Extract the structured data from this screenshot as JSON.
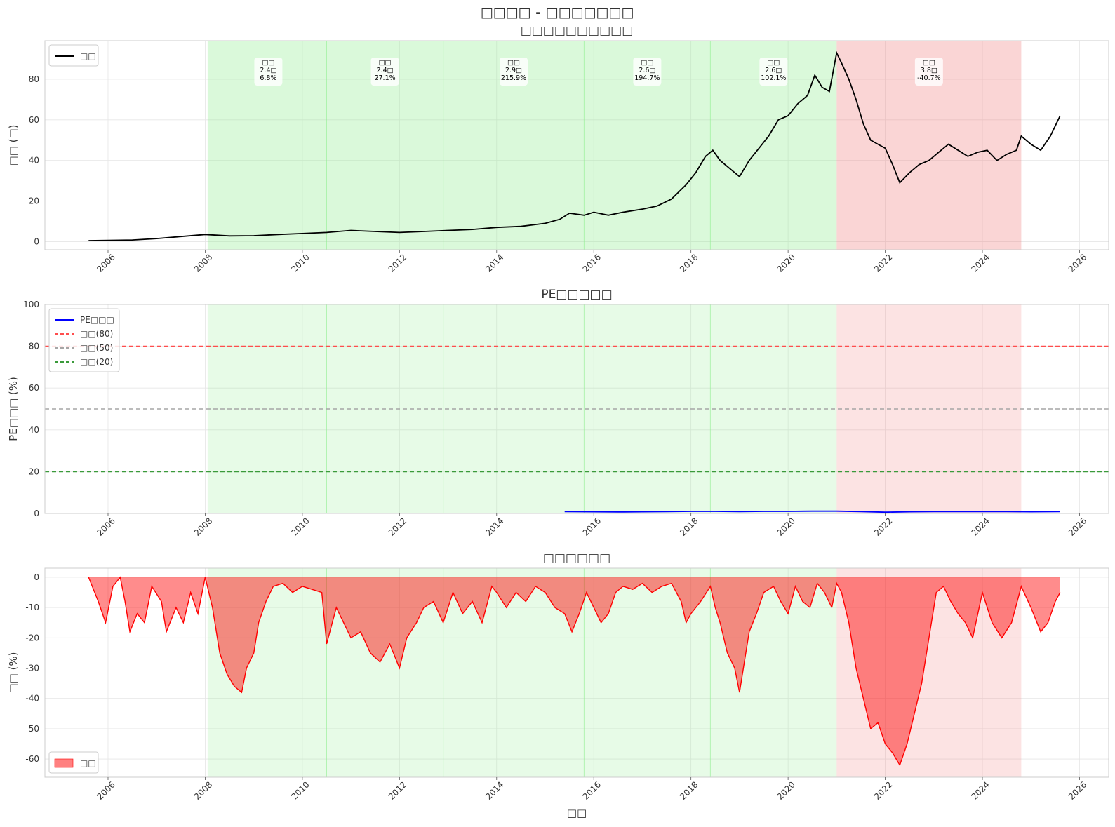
{
  "figure": {
    "title": "□□□□ - □□□□□□□"
  },
  "chart_data": [
    {
      "type": "line",
      "title": "□□□□□□□□□□",
      "xlabel": "",
      "ylabel": "□□ (□)",
      "xlim": [
        2004.7,
        2026.6
      ],
      "ylim": [
        -4,
        99
      ],
      "xticks": [
        "2006",
        "2008",
        "2010",
        "2012",
        "2014",
        "2016",
        "2018",
        "2020",
        "2022",
        "2024",
        "2026"
      ],
      "yticks": [
        "0",
        "20",
        "40",
        "60",
        "80"
      ],
      "legend": {
        "placement": "top-left",
        "entries": [
          {
            "label": "□□",
            "color": "#000000",
            "style": "line"
          }
        ]
      },
      "grid": true,
      "shaded_regions": [
        {
          "start": 2008.05,
          "end": 2021.0,
          "color": "#90ee90"
        },
        {
          "start": 2021.0,
          "end": 2024.8,
          "color": "#f08080"
        }
      ],
      "annotations": [
        {
          "x": 2009.3,
          "lines": [
            "□□",
            "2.4□",
            "6.8%"
          ]
        },
        {
          "x": 2011.7,
          "lines": [
            "□□",
            "2.4□",
            "27.1%"
          ]
        },
        {
          "x": 2014.35,
          "lines": [
            "□□",
            "2.9□",
            "215.9%"
          ]
        },
        {
          "x": 2017.1,
          "lines": [
            "□□",
            "2.6□",
            "194.7%"
          ]
        },
        {
          "x": 2019.7,
          "lines": [
            "□□",
            "2.6□",
            "102.1%"
          ]
        },
        {
          "x": 2022.9,
          "lines": [
            "□□",
            "3.8□",
            "-40.7%"
          ]
        }
      ],
      "series": [
        {
          "name": "□□",
          "color": "#000000",
          "x": [
            2005.6,
            2006.0,
            2006.5,
            2007.0,
            2007.5,
            2008.0,
            2008.5,
            2009.0,
            2009.5,
            2010.0,
            2010.5,
            2011.0,
            2011.5,
            2012.0,
            2012.5,
            2013.0,
            2013.5,
            2014.0,
            2014.5,
            2015.0,
            2015.3,
            2015.5,
            2015.8,
            2016.0,
            2016.3,
            2016.6,
            2017.0,
            2017.3,
            2017.6,
            2017.9,
            2018.1,
            2018.3,
            2018.45,
            2018.6,
            2018.8,
            2019.0,
            2019.2,
            2019.4,
            2019.6,
            2019.8,
            2020.0,
            2020.2,
            2020.4,
            2020.55,
            2020.7,
            2020.85,
            2021.0,
            2021.1,
            2021.25,
            2021.4,
            2021.55,
            2021.7,
            2021.85,
            2022.0,
            2022.15,
            2022.3,
            2022.5,
            2022.7,
            2022.9,
            2023.1,
            2023.3,
            2023.5,
            2023.7,
            2023.9,
            2024.1,
            2024.3,
            2024.5,
            2024.7,
            2024.8,
            2025.0,
            2025.2,
            2025.4,
            2025.6
          ],
          "y": [
            0.5,
            0.6,
            0.8,
            1.5,
            2.5,
            3.5,
            2.8,
            2.9,
            3.5,
            4.0,
            4.5,
            5.5,
            5.0,
            4.5,
            5.0,
            5.5,
            6.0,
            7.0,
            7.5,
            9.0,
            11.0,
            14.0,
            13.0,
            14.5,
            13.0,
            14.5,
            16.0,
            17.5,
            21.0,
            28.0,
            34.0,
            42.0,
            45.0,
            40.0,
            36.0,
            32.0,
            40.0,
            46.0,
            52.0,
            60.0,
            62.0,
            68.0,
            72.0,
            82.0,
            76.0,
            74.0,
            93.0,
            88.0,
            80.0,
            70.0,
            58.0,
            50.0,
            48.0,
            46.0,
            38.0,
            29.0,
            34.0,
            38.0,
            40.0,
            44.0,
            48.0,
            45.0,
            42.0,
            44.0,
            45.0,
            40.0,
            43.0,
            45.0,
            52.0,
            48.0,
            45.0,
            52.0,
            62.0
          ]
        }
      ]
    },
    {
      "type": "line",
      "title": "PE□□□□□",
      "xlabel": "",
      "ylabel": "PE□□□ (%)",
      "xlim": [
        2004.7,
        2026.6
      ],
      "ylim": [
        0,
        100
      ],
      "xticks": [
        "2006",
        "2008",
        "2010",
        "2012",
        "2014",
        "2016",
        "2018",
        "2020",
        "2022",
        "2024",
        "2026"
      ],
      "yticks": [
        "0",
        "20",
        "40",
        "60",
        "80",
        "100"
      ],
      "legend": {
        "placement": "top-left",
        "entries": [
          {
            "label": "PE□□□",
            "color": "#0000ff",
            "style": "line"
          },
          {
            "label": "□□(80)",
            "color": "#ff4d4d",
            "style": "dashed"
          },
          {
            "label": "□□(50)",
            "color": "#a6a6a6",
            "style": "dashed"
          },
          {
            "label": "□□(20)",
            "color": "#3a9a3a",
            "style": "dashed"
          }
        ]
      },
      "grid": true,
      "reference_lines": [
        {
          "y": 80,
          "color": "#ff4d4d"
        },
        {
          "y": 50,
          "color": "#a6a6a6"
        },
        {
          "y": 20,
          "color": "#3a9a3a"
        }
      ],
      "shaded_regions": [
        {
          "start": 2008.05,
          "end": 2021.0,
          "color": "#90ee90"
        },
        {
          "start": 2021.0,
          "end": 2024.8,
          "color": "#f08080"
        }
      ],
      "series": [
        {
          "name": "PE□□□",
          "color": "#0000ff",
          "x": [
            2015.4,
            2016.0,
            2016.5,
            2017.0,
            2017.5,
            2018.0,
            2018.5,
            2019.0,
            2019.5,
            2020.0,
            2020.5,
            2021.0,
            2021.5,
            2022.0,
            2022.5,
            2023.0,
            2023.5,
            2024.0,
            2024.5,
            2025.0,
            2025.6
          ],
          "y": [
            0.9,
            0.8,
            0.7,
            0.8,
            0.9,
            1.0,
            1.0,
            0.9,
            1.0,
            1.0,
            1.1,
            1.1,
            0.9,
            0.6,
            0.8,
            0.9,
            0.9,
            0.9,
            0.9,
            0.8,
            0.9
          ]
        }
      ]
    },
    {
      "type": "area",
      "title": "□□□□□□",
      "xlabel": "□□",
      "ylabel": "□□ (%)",
      "xlim": [
        2004.7,
        2026.6
      ],
      "ylim": [
        -66,
        3
      ],
      "xticks": [
        "2006",
        "2008",
        "2010",
        "2012",
        "2014",
        "2016",
        "2018",
        "2020",
        "2022",
        "2024",
        "2026"
      ],
      "yticks": [
        "0",
        "-10",
        "-20",
        "-30",
        "-40",
        "-50",
        "-60"
      ],
      "legend": {
        "placement": "bottom-left",
        "entries": [
          {
            "label": "□□",
            "color": "#ff8080",
            "style": "patch"
          }
        ]
      },
      "grid": true,
      "shaded_regions": [
        {
          "start": 2008.05,
          "end": 2021.0,
          "color": "#90ee90"
        },
        {
          "start": 2021.0,
          "end": 2024.8,
          "color": "#f08080"
        }
      ],
      "series": [
        {
          "name": "□□",
          "color": "#ff0000",
          "x": [
            2005.6,
            2005.8,
            2005.95,
            2006.1,
            2006.25,
            2006.35,
            2006.45,
            2006.6,
            2006.75,
            2006.9,
            2007.1,
            2007.2,
            2007.4,
            2007.55,
            2007.7,
            2007.85,
            2008.0,
            2008.15,
            2008.3,
            2008.45,
            2008.6,
            2008.75,
            2008.85,
            2009.0,
            2009.1,
            2009.25,
            2009.4,
            2009.6,
            2009.8,
            2010.0,
            2010.2,
            2010.4,
            2010.5,
            2010.7,
            2010.85,
            2011.0,
            2011.2,
            2011.4,
            2011.6,
            2011.8,
            2012.0,
            2012.15,
            2012.35,
            2012.5,
            2012.7,
            2012.9,
            2013.1,
            2013.3,
            2013.5,
            2013.7,
            2013.9,
            2014.0,
            2014.2,
            2014.4,
            2014.6,
            2014.8,
            2015.0,
            2015.2,
            2015.4,
            2015.55,
            2015.7,
            2015.85,
            2016.0,
            2016.15,
            2016.3,
            2016.45,
            2016.6,
            2016.8,
            2017.0,
            2017.2,
            2017.4,
            2017.6,
            2017.8,
            2017.9,
            2018.0,
            2018.2,
            2018.4,
            2018.5,
            2018.6,
            2018.75,
            2018.9,
            2019.0,
            2019.1,
            2019.2,
            2019.35,
            2019.5,
            2019.7,
            2019.85,
            2020.0,
            2020.15,
            2020.3,
            2020.45,
            2020.6,
            2020.75,
            2020.9,
            2021.0,
            2021.1,
            2021.25,
            2021.4,
            2021.55,
            2021.7,
            2021.85,
            2022.0,
            2022.15,
            2022.3,
            2022.45,
            2022.6,
            2022.75,
            2022.9,
            2023.05,
            2023.2,
            2023.35,
            2023.5,
            2023.65,
            2023.8,
            2024.0,
            2024.2,
            2024.4,
            2024.6,
            2024.8,
            2025.0,
            2025.2,
            2025.35,
            2025.5,
            2025.6
          ],
          "y": [
            0,
            -8,
            -15,
            -3,
            0,
            -8,
            -18,
            -12,
            -15,
            -3,
            -8,
            -18,
            -10,
            -15,
            -5,
            -12,
            0,
            -10,
            -25,
            -32,
            -36,
            -38,
            -30,
            -25,
            -15,
            -8,
            -3,
            -2,
            -5,
            -3,
            -4,
            -5,
            -22,
            -10,
            -15,
            -20,
            -18,
            -25,
            -28,
            -22,
            -30,
            -20,
            -15,
            -10,
            -8,
            -15,
            -5,
            -12,
            -8,
            -15,
            -3,
            -5,
            -10,
            -5,
            -8,
            -3,
            -5,
            -10,
            -12,
            -18,
            -12,
            -5,
            -10,
            -15,
            -12,
            -5,
            -3,
            -4,
            -2,
            -5,
            -3,
            -2,
            -8,
            -15,
            -12,
            -8,
            -3,
            -10,
            -15,
            -25,
            -30,
            -38,
            -28,
            -18,
            -12,
            -5,
            -3,
            -8,
            -12,
            -3,
            -8,
            -10,
            -2,
            -5,
            -10,
            -2,
            -5,
            -15,
            -30,
            -40,
            -50,
            -48,
            -55,
            -58,
            -62,
            -55,
            -45,
            -35,
            -20,
            -5,
            -3,
            -8,
            -12,
            -15,
            -20,
            -5,
            -15,
            -20,
            -15,
            -3,
            -10,
            -18,
            -15,
            -8,
            -5
          ]
        }
      ]
    }
  ]
}
